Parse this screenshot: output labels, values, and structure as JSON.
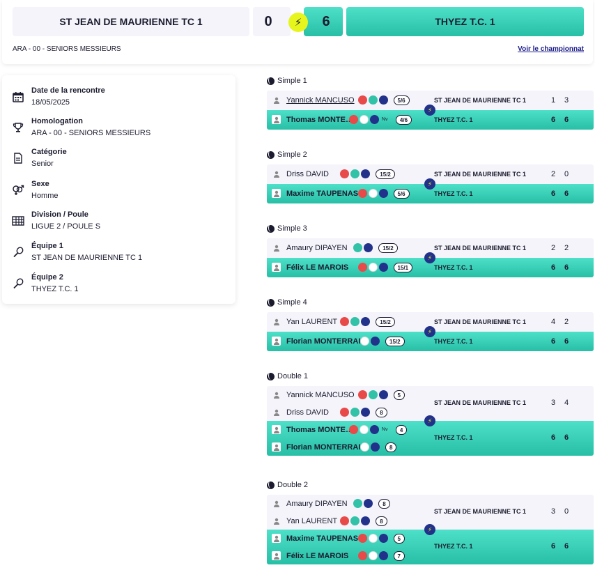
{
  "header": {
    "home_team": "ST JEAN DE MAURIENNE TC 1",
    "home_score": "0",
    "away_score": "6",
    "away_team": "THYEZ T.C. 1",
    "competition": "ARA - 00 - SENIORS MESSIEURS",
    "championship_link": "Voir le championnat"
  },
  "info": [
    {
      "icon": "calendar-icon",
      "label": "Date de la rencontre",
      "value": "18/05/2025"
    },
    {
      "icon": "trophy-icon",
      "label": "Homologation",
      "value": "ARA - 00 - SENIORS MESSIEURS"
    },
    {
      "icon": "document-icon",
      "label": "Catégorie",
      "value": "Senior"
    },
    {
      "icon": "gender-icon",
      "label": "Sexe",
      "value": "Homme"
    },
    {
      "icon": "grid-icon",
      "label": "Division / Poule",
      "value": "LIGUE 2 / POULE S"
    },
    {
      "icon": "racket-icon",
      "label": "Équipe 1",
      "value": "ST JEAN DE MAURIENNE TC 1"
    },
    {
      "icon": "racket-icon",
      "label": "Équipe 2",
      "value": "THYEZ T.C. 1"
    }
  ],
  "matches": [
    {
      "title": "Simple 1",
      "home": {
        "club": "ST JEAN DE MAURIENNE TC 1",
        "sets": [
          "1",
          "3"
        ],
        "players": [
          {
            "name": "Yannick MANCUSO",
            "rank": "5/6",
            "badges": [
              "red",
              "teal",
              "navy"
            ],
            "nv": "",
            "link": true
          }
        ]
      },
      "away": {
        "club": "THYEZ T.C. 1",
        "sets": [
          "6",
          "6"
        ],
        "players": [
          {
            "name": "Thomas MONTE…",
            "rank": "4/6",
            "badges": [
              "red",
              "wire",
              "navy"
            ],
            "nv": "Nv"
          }
        ]
      }
    },
    {
      "title": "Simple 2",
      "home": {
        "club": "ST JEAN DE MAURIENNE TC 1",
        "sets": [
          "2",
          "0"
        ],
        "players": [
          {
            "name": "Driss DAVID",
            "rank": "15/2",
            "badges": [
              "red",
              "teal",
              "navy"
            ],
            "nv": ""
          }
        ]
      },
      "away": {
        "club": "THYEZ T.C. 1",
        "sets": [
          "6",
          "6"
        ],
        "players": [
          {
            "name": "Maxime TAUPENAS",
            "rank": "5/6",
            "badges": [
              "red",
              "wire",
              "navy"
            ],
            "nv": ""
          }
        ]
      }
    },
    {
      "title": "Simple 3",
      "home": {
        "club": "ST JEAN DE MAURIENNE TC 1",
        "sets": [
          "2",
          "2"
        ],
        "players": [
          {
            "name": "Amaury DIPAYEN",
            "rank": "15/2",
            "badges": [
              "teal",
              "navy"
            ],
            "nv": ""
          }
        ]
      },
      "away": {
        "club": "THYEZ T.C. 1",
        "sets": [
          "6",
          "6"
        ],
        "players": [
          {
            "name": "Félix LE MAROIS",
            "rank": "15/1",
            "badges": [
              "red",
              "wire",
              "navy"
            ],
            "nv": ""
          }
        ]
      }
    },
    {
      "title": "Simple 4",
      "home": {
        "club": "ST JEAN DE MAURIENNE TC 1",
        "sets": [
          "4",
          "2"
        ],
        "players": [
          {
            "name": "Yan LAURENT",
            "rank": "15/2",
            "badges": [
              "red",
              "teal",
              "navy"
            ],
            "nv": ""
          }
        ]
      },
      "away": {
        "club": "THYEZ T.C. 1",
        "sets": [
          "6",
          "6"
        ],
        "players": [
          {
            "name": "Florian MONTERRAIN",
            "rank": "15/2",
            "badges": [
              "wire",
              "navy"
            ],
            "nv": ""
          }
        ]
      }
    },
    {
      "title": "Double 1",
      "home": {
        "club": "ST JEAN DE MAURIENNE TC 1",
        "sets": [
          "3",
          "4"
        ],
        "players": [
          {
            "name": "Yannick MANCUSO",
            "rank": "5",
            "badges": [
              "red",
              "teal",
              "navy"
            ],
            "nv": ""
          },
          {
            "name": "Driss DAVID",
            "rank": "8",
            "badges": [
              "red",
              "teal",
              "navy"
            ],
            "nv": ""
          }
        ]
      },
      "away": {
        "club": "THYEZ T.C. 1",
        "sets": [
          "6",
          "6"
        ],
        "players": [
          {
            "name": "Thomas MONTE…",
            "rank": "4",
            "badges": [
              "red",
              "wire",
              "navy"
            ],
            "nv": "Nv"
          },
          {
            "name": "Florian MONTERRAIN",
            "rank": "8",
            "badges": [
              "wire",
              "navy"
            ],
            "nv": ""
          }
        ]
      }
    },
    {
      "title": "Double 2",
      "home": {
        "club": "ST JEAN DE MAURIENNE TC 1",
        "sets": [
          "3",
          "0"
        ],
        "players": [
          {
            "name": "Amaury DIPAYEN",
            "rank": "8",
            "badges": [
              "teal",
              "navy"
            ],
            "nv": ""
          },
          {
            "name": "Yan LAURENT",
            "rank": "8",
            "badges": [
              "red",
              "teal",
              "navy"
            ],
            "nv": ""
          }
        ]
      },
      "away": {
        "club": "THYEZ T.C. 1",
        "sets": [
          "6",
          "6"
        ],
        "players": [
          {
            "name": "Maxime TAUPENAS",
            "rank": "5",
            "badges": [
              "red",
              "wire",
              "navy"
            ],
            "nv": ""
          },
          {
            "name": "Félix LE MAROIS",
            "rank": "7",
            "badges": [
              "red",
              "wire",
              "navy"
            ],
            "nv": ""
          }
        ]
      }
    }
  ]
}
